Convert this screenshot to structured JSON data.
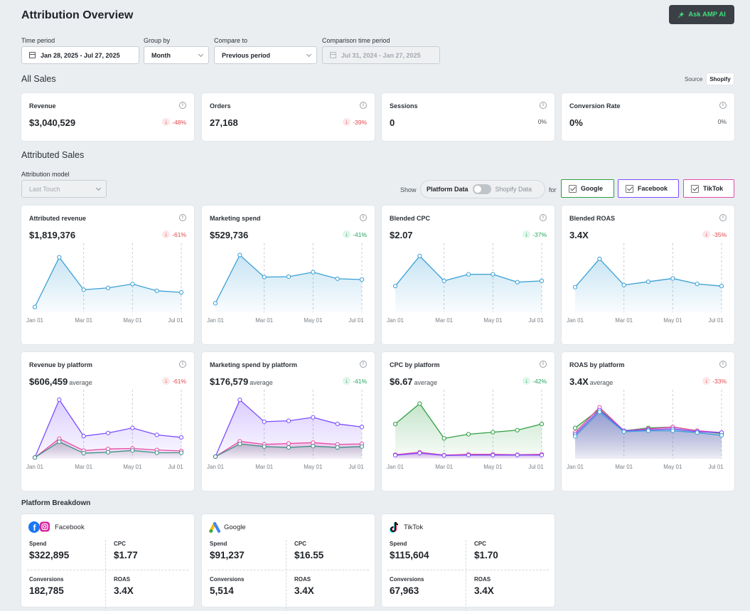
{
  "header": {
    "title": "Attribution Overview",
    "ask_button": "Ask AMP AI"
  },
  "filters": {
    "time_period": {
      "label": "Time period",
      "value": "Jan 28, 2025 - Jul 27, 2025"
    },
    "group_by": {
      "label": "Group by",
      "value": "Month"
    },
    "compare_to": {
      "label": "Compare to",
      "value": "Previous period"
    },
    "comparison_period": {
      "label": "Comparison time period",
      "value": "Jul 31, 2024 - Jan 27, 2025"
    }
  },
  "all_sales": {
    "title": "All Sales",
    "source_label": "Source",
    "source_value": "Shopify",
    "kpis": [
      {
        "label": "Revenue",
        "value": "$3,040,529",
        "change": "-48%",
        "dir": "red"
      },
      {
        "label": "Orders",
        "value": "27,168",
        "change": "-39%",
        "dir": "red"
      },
      {
        "label": "Sessions",
        "value": "0",
        "change": "0%",
        "dir": "plain"
      },
      {
        "label": "Conversion Rate",
        "value": "0%",
        "change": "0%",
        "dir": "plain"
      }
    ]
  },
  "attributed": {
    "title": "Attributed Sales",
    "model_label": "Attribution model",
    "model_value": "Last Touch",
    "show_label": "Show",
    "platform_data": "Platform Data",
    "shopify_data": "Shopify Data",
    "for_label": "for",
    "platforms": [
      {
        "label": "Google",
        "color": "#2ea043"
      },
      {
        "label": "Facebook",
        "color": "#7c4dff"
      },
      {
        "label": "TikTok",
        "color": "#e64aa7"
      }
    ]
  },
  "colors": {
    "blue": "#3aa0d6",
    "purple": "#7c4dff",
    "pink": "#e64aa7",
    "teal": "#3f8f86",
    "green": "#2ea043"
  },
  "x_ticks": [
    "Jan 01",
    "Mar 01",
    "May 01",
    "Jul 01"
  ],
  "charts_row1": [
    {
      "title": "Attributed revenue",
      "value": "$1,819,376",
      "change": "-61%",
      "dir": "red",
      "series": [
        {
          "color": "blue",
          "values": [
            40,
            420,
            172,
            186,
            216,
            164,
            152
          ]
        }
      ],
      "ymax": 500
    },
    {
      "title": "Marketing spend",
      "value": "$529,736",
      "change": "-41%",
      "dir": "green",
      "series": [
        {
          "color": "blue",
          "values": [
            22,
            140,
            86,
            87,
            98,
            82,
            80
          ]
        }
      ],
      "ymax": 160
    },
    {
      "title": "Blended CPC",
      "value": "$2.07",
      "change": "-37%",
      "dir": "green",
      "series": [
        {
          "color": "blue",
          "values": [
            2.0,
            4.3,
            2.4,
            2.9,
            2.9,
            2.3,
            2.4
          ]
        }
      ],
      "ymax": 5
    },
    {
      "title": "Blended ROAS",
      "value": "3.4X",
      "change": "-35%",
      "dir": "red",
      "series": [
        {
          "color": "blue",
          "values": [
            2.3,
            4.9,
            2.5,
            2.8,
            3.1,
            2.6,
            2.4
          ]
        }
      ],
      "ymax": 6
    }
  ],
  "charts_row2": [
    {
      "title": "Revenue by platform",
      "value": "$606,459",
      "avg": "average",
      "change": "-61%",
      "dir": "red",
      "series": [
        {
          "color": "purple",
          "values": [
            10,
            470,
            180,
            205,
            245,
            190,
            170
          ]
        },
        {
          "color": "pink",
          "values": [
            10,
            160,
            65,
            78,
            82,
            70,
            62
          ]
        },
        {
          "color": "teal",
          "values": [
            10,
            135,
            45,
            52,
            66,
            48,
            48
          ]
        }
      ],
      "ymax": 520
    },
    {
      "title": "Marketing spend by platform",
      "value": "$176,579",
      "avg": "average",
      "change": "-41%",
      "dir": "green",
      "series": [
        {
          "color": "purple",
          "values": [
            5,
            135,
            85,
            87,
            95,
            80,
            73
          ]
        },
        {
          "color": "pink",
          "values": [
            5,
            40,
            33,
            35,
            37,
            33,
            34
          ]
        },
        {
          "color": "teal",
          "values": [
            5,
            34,
            28,
            26,
            29,
            26,
            28
          ]
        }
      ],
      "ymax": 150
    },
    {
      "title": "CPC by platform",
      "value": "$6.67",
      "avg": "average",
      "change": "-42%",
      "dir": "green",
      "series": [
        {
          "color": "green",
          "values": [
            17,
            27,
            10,
            12,
            13,
            14,
            17
          ]
        },
        {
          "color": "pink",
          "values": [
            2.0,
            3.2,
            1.8,
            2.2,
            2.2,
            2.0,
            2.2
          ]
        },
        {
          "color": "purple",
          "values": [
            1.7,
            2.8,
            1.6,
            1.8,
            1.8,
            1.8,
            1.8
          ]
        }
      ],
      "ymax": 32
    },
    {
      "title": "ROAS by platform",
      "value": "3.4X",
      "avg": "average",
      "change": "-33%",
      "dir": "red",
      "series": [
        {
          "color": "green",
          "values": [
            3.3,
            5.3,
            3.0,
            3.3,
            3.4,
            3.0,
            2.7
          ]
        },
        {
          "color": "pink",
          "values": [
            2.8,
            5.5,
            3.0,
            3.2,
            3.4,
            3.0,
            2.8
          ]
        },
        {
          "color": "purple",
          "values": [
            2.6,
            5.2,
            3.0,
            3.1,
            3.2,
            2.9,
            2.8
          ]
        },
        {
          "color": "blue",
          "values": [
            2.4,
            5.0,
            2.9,
            3.0,
            3.0,
            2.8,
            2.5
          ]
        }
      ],
      "ymax": 7
    }
  ],
  "breakdown": {
    "title": "Platform Breakdown",
    "platforms": [
      {
        "name": "Facebook",
        "spend_label": "Spend",
        "spend": "$322,895",
        "cpc_label": "CPC",
        "cpc": "$1.77",
        "conv_label": "Conversions",
        "conv": "182,785",
        "roas_label": "ROAS",
        "roas": "3.4X"
      },
      {
        "name": "Google",
        "spend_label": "Spend",
        "spend": "$91,237",
        "cpc_label": "CPC",
        "cpc": "$16.55",
        "conv_label": "Conversions",
        "conv": "5,514",
        "roas_label": "ROAS",
        "roas": "3.4X"
      },
      {
        "name": "TikTok",
        "spend_label": "Spend",
        "spend": "$115,604",
        "cpc_label": "CPC",
        "cpc": "$1.70",
        "conv_label": "Conversions",
        "conv": "67,963",
        "roas_label": "ROAS",
        "roas": "3.4X"
      }
    ]
  }
}
